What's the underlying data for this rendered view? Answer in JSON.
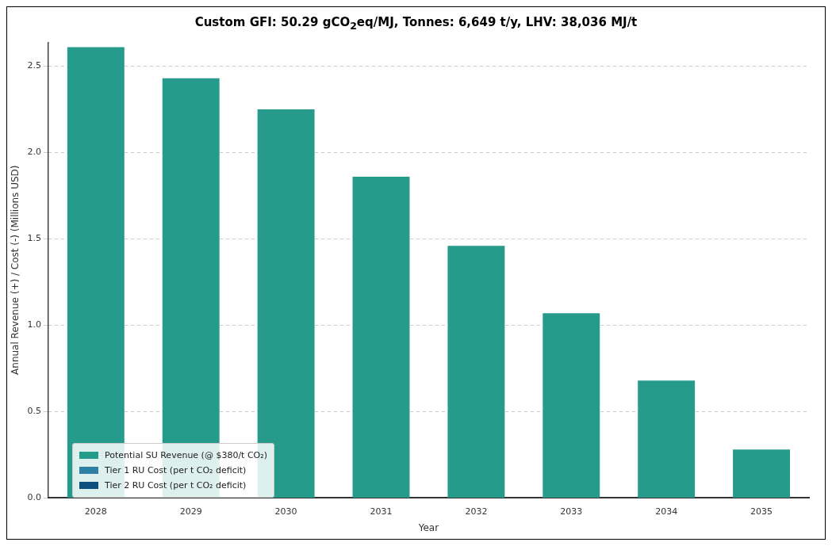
{
  "chart_data": {
    "type": "bar",
    "title": "Custom GFI: 50.29 gCO$_{2}$eq/MJ, Tonnes: 6,649 t/y, LHV: 38,036 MJ/t",
    "xlabel": "Year",
    "ylabel": "Annual Revenue (+) / Cost (-) (Millions USD)",
    "categories": [
      "2028",
      "2029",
      "2030",
      "2031",
      "2032",
      "2033",
      "2034",
      "2035"
    ],
    "series": [
      {
        "name": "Potential SU Revenue (@ $380/t CO₂)",
        "color": "#269b8c",
        "values": [
          2.61,
          2.43,
          2.25,
          1.86,
          1.46,
          1.07,
          0.68,
          0.28
        ]
      },
      {
        "name": "Tier 1 RU Cost (per t CO₂ deficit)",
        "color": "#2f7fa5",
        "values": [
          0,
          0,
          0,
          0,
          0,
          0,
          0,
          0
        ]
      },
      {
        "name": "Tier 2 RU Cost (per t CO₂ deficit)",
        "color": "#0c4f7d",
        "values": [
          0,
          0,
          0,
          0,
          0,
          0,
          0,
          0
        ]
      }
    ],
    "stacked": true,
    "ylim": [
      0,
      2.64
    ],
    "yticks": [
      {
        "value": 0,
        "label": "0.0"
      },
      {
        "value": 0.5,
        "label": "0.5"
      },
      {
        "value": 1,
        "label": "1.0"
      },
      {
        "value": 1.5,
        "label": "1.5"
      },
      {
        "value": 2,
        "label": "2.0"
      },
      {
        "value": 2.5,
        "label": "2.5"
      }
    ],
    "grid": "y",
    "legend": "bottom left"
  }
}
